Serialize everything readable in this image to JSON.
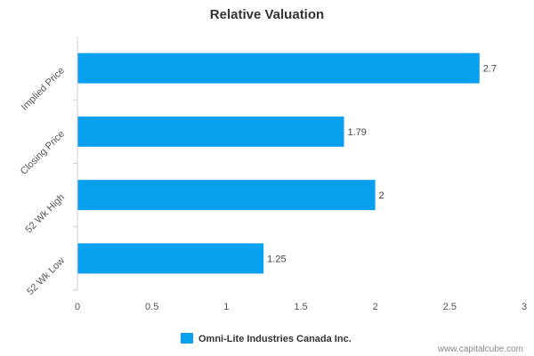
{
  "chart_data": {
    "type": "bar",
    "orientation": "horizontal",
    "title": "Relative Valuation",
    "categories": [
      "Implied Price",
      "Closing Price",
      "52 Wk High",
      "52 Wk Low"
    ],
    "series": [
      {
        "name": "Omni-Lite Industries Canada Inc.",
        "values": [
          2.7,
          1.79,
          2,
          1.25
        ]
      }
    ],
    "value_labels": [
      "2.7",
      "1.79",
      "2",
      "1.25"
    ],
    "xlim": [
      0,
      3
    ],
    "x_ticks": [
      "0",
      "0.5",
      "1",
      "1.5",
      "2",
      "2.5",
      "3"
    ],
    "grid": false,
    "legend_position": "bottom-center",
    "colors": {
      "bar": "#0aa0f0",
      "axis": "#cccccc"
    }
  },
  "watermark": "www.capitalcube.com"
}
